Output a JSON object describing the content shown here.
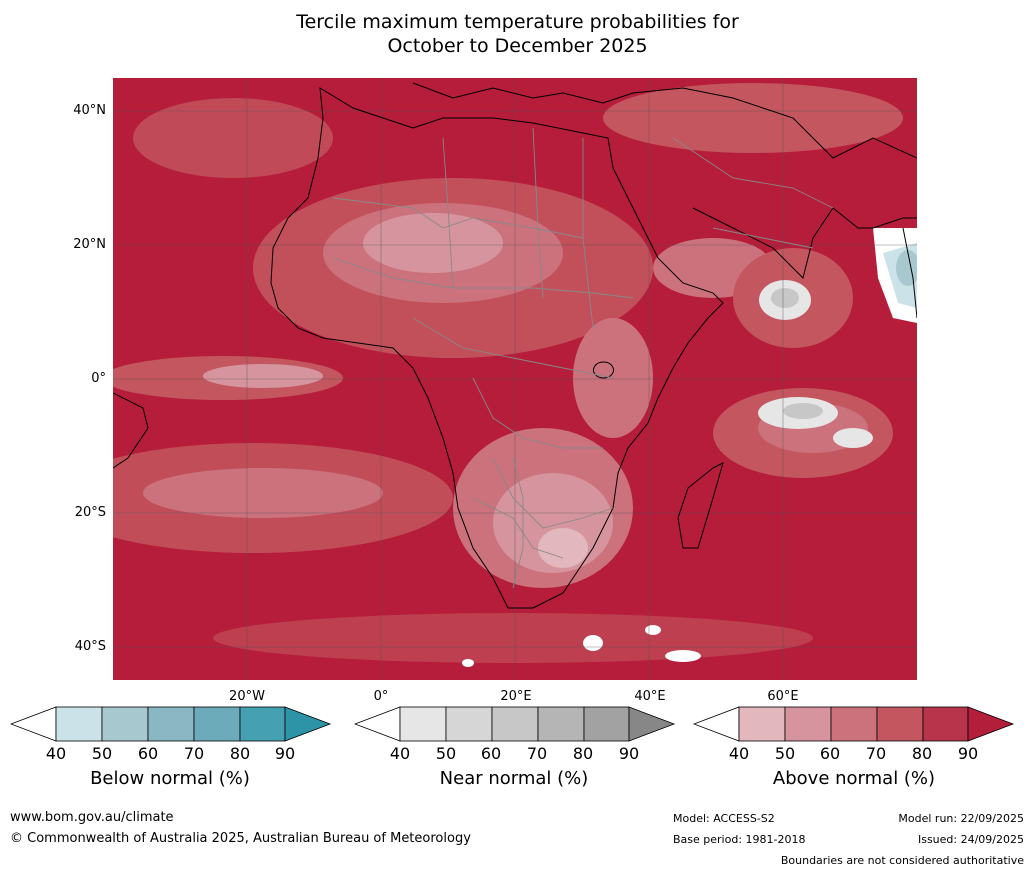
{
  "title_line1": "Tercile maximum temperature probabilities for",
  "title_line2": "October to December 2025",
  "chart_data": {
    "type": "heatmap",
    "title": "Tercile maximum temperature probabilities for October to December 2025",
    "lat_ticks": [
      "40°N",
      "20°N",
      "0°",
      "20°S",
      "40°S"
    ],
    "lon_ticks": [
      "20°W",
      "0°",
      "20°E",
      "40°E",
      "60°E"
    ],
    "grid": true,
    "categories": [
      "Below normal (%)",
      "Near normal (%)",
      "Above normal (%)"
    ],
    "colorbars": [
      {
        "label": "Below normal (%)",
        "ticks": [
          "40",
          "50",
          "60",
          "70",
          "80",
          "90"
        ],
        "colors": [
          "#ffffff",
          "#cbe2e8",
          "#a8c8cf",
          "#8ab7c3",
          "#6cacba",
          "#45a0b1",
          "#2d93a6"
        ]
      },
      {
        "label": "Near normal (%)",
        "ticks": [
          "40",
          "50",
          "60",
          "70",
          "80",
          "90"
        ],
        "colors": [
          "#ffffff",
          "#e6e6e6",
          "#d6d6d6",
          "#c7c7c7",
          "#b5b5b5",
          "#a2a2a2",
          "#878787"
        ]
      },
      {
        "label": "Above normal (%)",
        "ticks": [
          "40",
          "50",
          "60",
          "70",
          "80",
          "90"
        ],
        "colors": [
          "#ffffff",
          "#e2b7be",
          "#d6959e",
          "#cb727d",
          "#c3565f",
          "#b7344a",
          "#b31e3a"
        ]
      }
    ]
  },
  "colors": {
    "dominant": "#b51d3a",
    "grid": "#555555",
    "borders": "#888888",
    "coast": "#000000"
  },
  "footer": {
    "website": "www.bom.gov.au/climate",
    "copyright": "© Commonwealth of Australia 2025, Australian Bureau of Meteorology",
    "model": "Model: ACCESS-S2",
    "base_period": "Base period: 1981-2018",
    "model_run": "Model run: 22/09/2025",
    "issued": "Issued: 24/09/2025",
    "disclaimer": "Boundaries are not considered authoritative"
  }
}
